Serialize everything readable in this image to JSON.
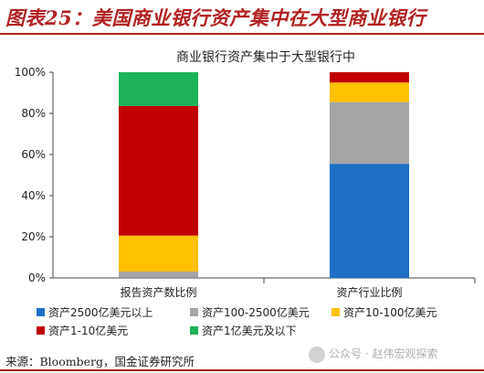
{
  "figure_title": "图表25：美国商业银行资产集中在大型商业银行",
  "source_note": "来源：Bloomberg，国金证券研究所",
  "watermark_text": "公众号 · 赵伟宏观探索",
  "chart_data": {
    "type": "bar",
    "stacked": true,
    "title": "商业银行资产集中于大型银行中",
    "xlabel": "",
    "ylabel": "",
    "ylim": [
      0,
      100
    ],
    "y_ticks": [
      "0%",
      "20%",
      "40%",
      "60%",
      "80%",
      "100%"
    ],
    "categories": [
      "报告资产数比例",
      "资产行业比例"
    ],
    "series": [
      {
        "name": "资产2500亿美元以上",
        "color": "#1f6fc5",
        "values": [
          0.1,
          55.5
        ]
      },
      {
        "name": "资产100-2500亿美元",
        "color": "#a6a6a6",
        "values": [
          3.0,
          30.0
        ]
      },
      {
        "name": "资产10-100亿美元",
        "color": "#ffc000",
        "values": [
          17.5,
          9.5
        ]
      },
      {
        "name": "资产1-10亿美元",
        "color": "#c00000",
        "values": [
          63.0,
          5.0
        ]
      },
      {
        "name": "资产1亿美元及以下",
        "color": "#1eb35a",
        "values": [
          16.4,
          0.0
        ]
      }
    ],
    "legend_position": "bottom",
    "grid": false
  }
}
